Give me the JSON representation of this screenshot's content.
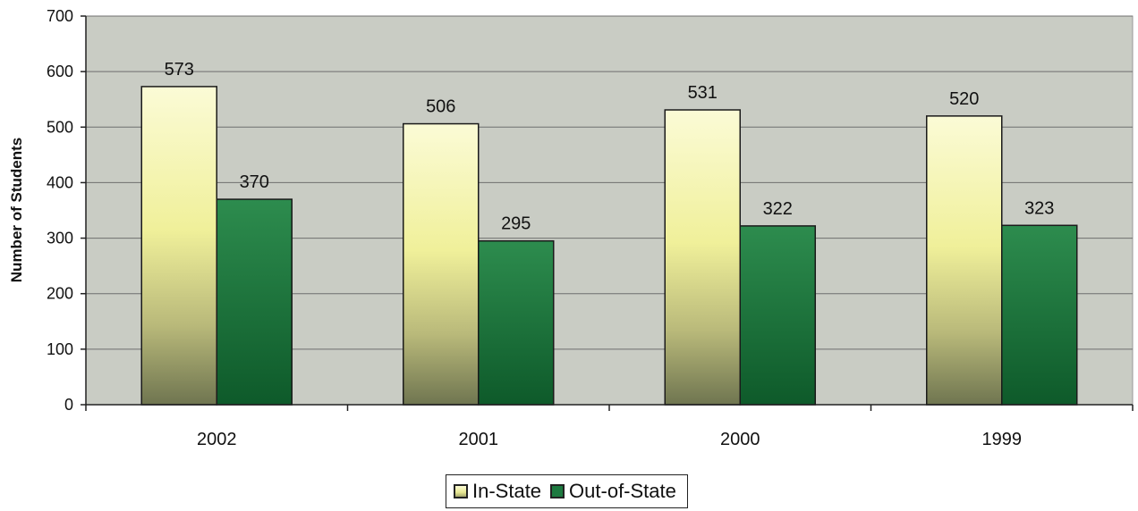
{
  "chart_data": {
    "type": "bar",
    "title": "",
    "xlabel": "",
    "ylabel": "Number of Students",
    "categories": [
      "2002",
      "2001",
      "2000",
      "1999"
    ],
    "series": [
      {
        "name": "In-State",
        "values": [
          573,
          506,
          531,
          520
        ],
        "color": "#f2f2a8"
      },
      {
        "name": "Out-of-State",
        "values": [
          370,
          295,
          322,
          323
        ],
        "color": "#1d7a40"
      }
    ],
    "ylim": [
      0,
      700
    ],
    "yticks": [
      0,
      100,
      200,
      300,
      400,
      500,
      600,
      700
    ],
    "grid": true,
    "legend_position": "bottom",
    "plot_background": "#c9ccc4"
  }
}
